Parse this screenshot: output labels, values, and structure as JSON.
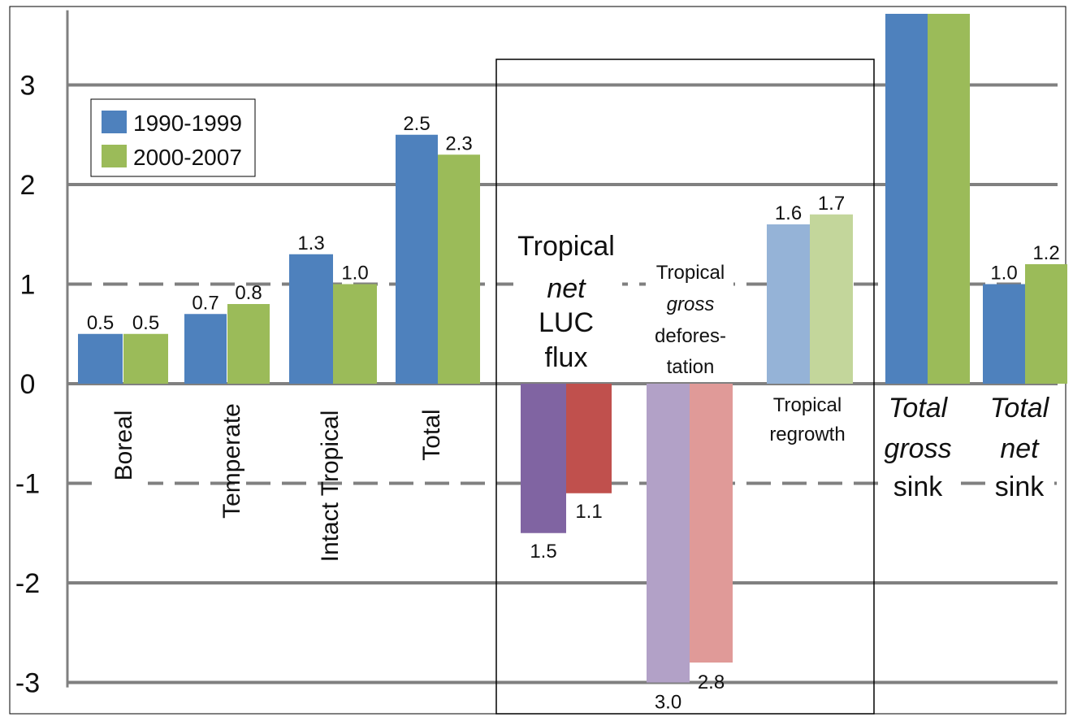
{
  "chart_data": {
    "type": "bar",
    "title": "",
    "ylim": [
      -3.2,
      3.8
    ],
    "y_ticks": [
      "3",
      "2",
      "1",
      "0",
      "-1",
      "-2",
      "-3"
    ],
    "grid": true,
    "legend_position": "top-left",
    "series": [
      {
        "name": "1990-1999",
        "color": "#4e81bd"
      },
      {
        "name": "2000-2007",
        "color": "#9bbb59"
      }
    ],
    "groups": [
      {
        "label": "Boreal",
        "values": [
          0.5,
          0.5
        ],
        "value_labels": [
          "0.5",
          "0.5"
        ]
      },
      {
        "label": "Temperate",
        "values": [
          0.7,
          0.8
        ],
        "value_labels": [
          "0.7",
          "0.8"
        ]
      },
      {
        "label": "Intact Tropical",
        "values": [
          1.3,
          1.0
        ],
        "value_labels": [
          "1.3",
          "1.0"
        ]
      },
      {
        "label": "Total",
        "values": [
          2.5,
          2.3
        ],
        "value_labels": [
          "2.5",
          "2.3"
        ]
      },
      {
        "label_lines": [
          "Tropical",
          "net",
          "LUC",
          "flux"
        ],
        "values": [
          -1.5,
          -1.1
        ],
        "value_labels": [
          "1.5",
          "1.1"
        ]
      },
      {
        "label_lines": [
          "Tropical",
          "gross",
          "defores-",
          "tation"
        ],
        "values": [
          -3.0,
          -2.8
        ],
        "value_labels": [
          "3.0",
          "2.8"
        ]
      },
      {
        "label_lines": [
          "Tropical",
          "regrowth"
        ],
        "values": [
          1.6,
          1.7
        ],
        "value_labels": [
          "1.6",
          "1.7"
        ]
      },
      {
        "label_lines": [
          "Total",
          "gross",
          "sink"
        ],
        "values": [
          4.0,
          4.0
        ],
        "value_labels": [
          "",
          ""
        ]
      },
      {
        "label_lines": [
          "Total",
          "net",
          "sink"
        ],
        "values": [
          1.0,
          1.2
        ],
        "value_labels": [
          "1.0",
          "1.2"
        ]
      }
    ]
  },
  "colors": {
    "series1": "#4e81bd",
    "series2": "#9bbb59",
    "net_luc_1": "#8064a2",
    "net_luc_2": "#c0504d",
    "gross_def_1": "#b2a1c7",
    "gross_def_2": "#e09a98",
    "regrowth_1": "#95b3d7",
    "regrowth_2": "#c3d69b",
    "grid": "#808080"
  }
}
